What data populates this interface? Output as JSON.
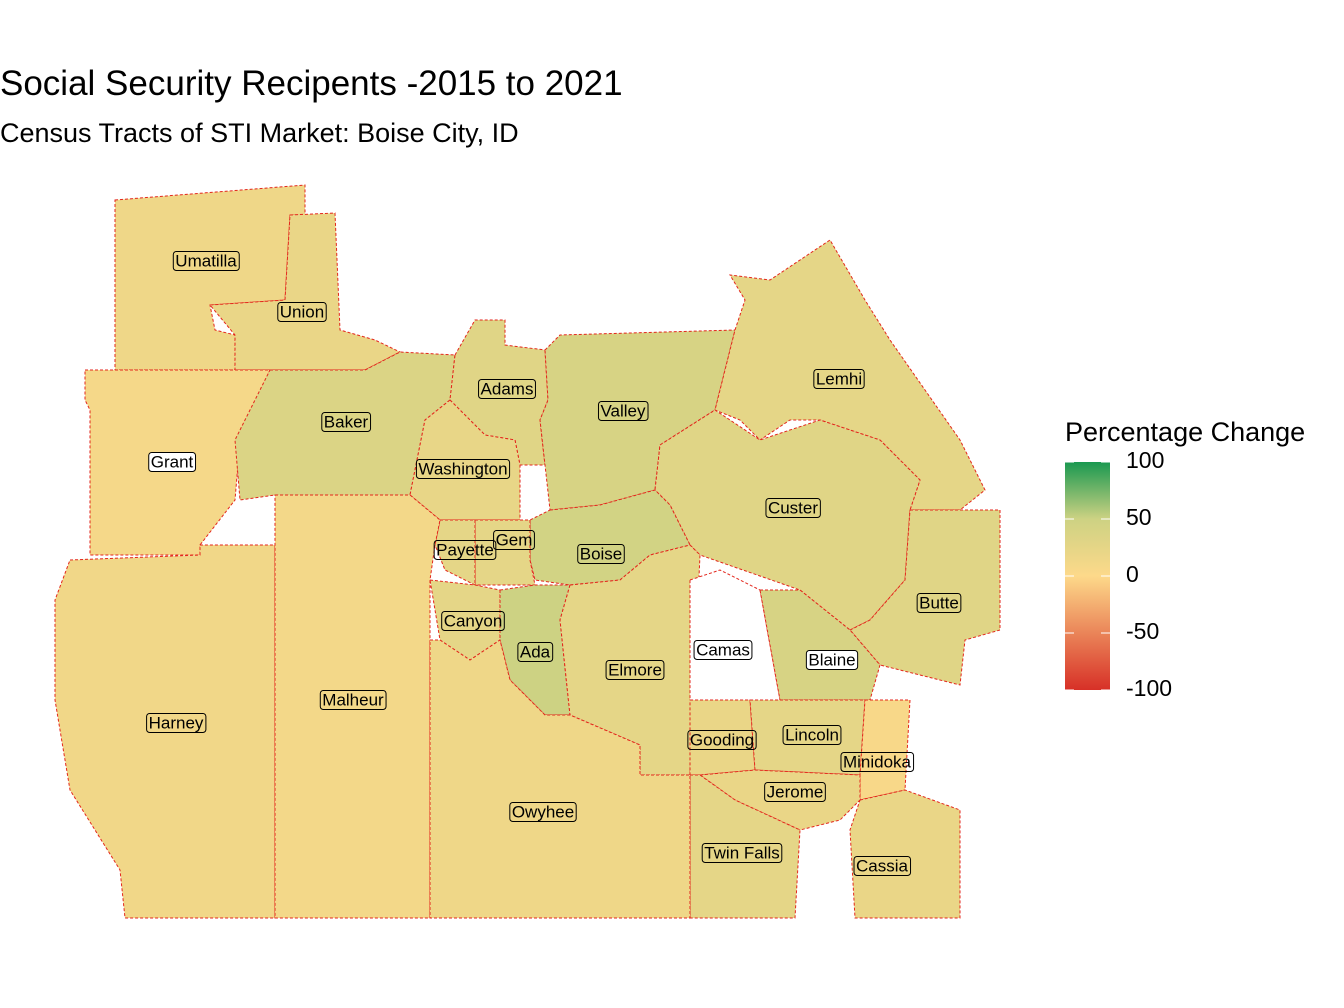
{
  "chart_data": {
    "type": "choropleth",
    "title": "Social Security Recipents -2015 to 2021",
    "subtitle": "Census Tracts of STI Market: Boise City, ID",
    "legend_title": "Percentage Change",
    "legend_lim": [
      -100,
      100
    ],
    "legend_ticks": [
      100,
      50,
      0,
      -50,
      -100
    ],
    "color_stops": [
      {
        "value": -100,
        "color": "#d73027"
      },
      {
        "value": 0,
        "color": "#fdd98a"
      },
      {
        "value": 50,
        "color": "#cdd283"
      },
      {
        "value": 100,
        "color": "#1a9850"
      }
    ],
    "border_color": "#e3261c",
    "counties": [
      {
        "name": "Umatilla",
        "value": 15
      },
      {
        "name": "Union",
        "value": 20
      },
      {
        "name": "Grant",
        "value": 8
      },
      {
        "name": "Baker",
        "value": 35
      },
      {
        "name": "Adams",
        "value": 30
      },
      {
        "name": "Washington",
        "value": 22
      },
      {
        "name": "Valley",
        "value": 40
      },
      {
        "name": "Lemhi",
        "value": 25
      },
      {
        "name": "Custer",
        "value": 30
      },
      {
        "name": "Butte",
        "value": 30
      },
      {
        "name": "Boise",
        "value": 45
      },
      {
        "name": "Gem",
        "value": 25
      },
      {
        "name": "Payette",
        "value": 25
      },
      {
        "name": "Canyon",
        "value": 25
      },
      {
        "name": "Ada",
        "value": 50
      },
      {
        "name": "Elmore",
        "value": 25
      },
      {
        "name": "Camas",
        "value": null
      },
      {
        "name": "Blaine",
        "value": 40
      },
      {
        "name": "Gooding",
        "value": 20
      },
      {
        "name": "Lincoln",
        "value": 25
      },
      {
        "name": "Minidoka",
        "value": 5
      },
      {
        "name": "Jerome",
        "value": 20
      },
      {
        "name": "Twin Falls",
        "value": 25
      },
      {
        "name": "Cassia",
        "value": 20
      },
      {
        "name": "Harney",
        "value": 12
      },
      {
        "name": "Malheur",
        "value": 10
      },
      {
        "name": "Owyhee",
        "value": 15
      }
    ]
  }
}
